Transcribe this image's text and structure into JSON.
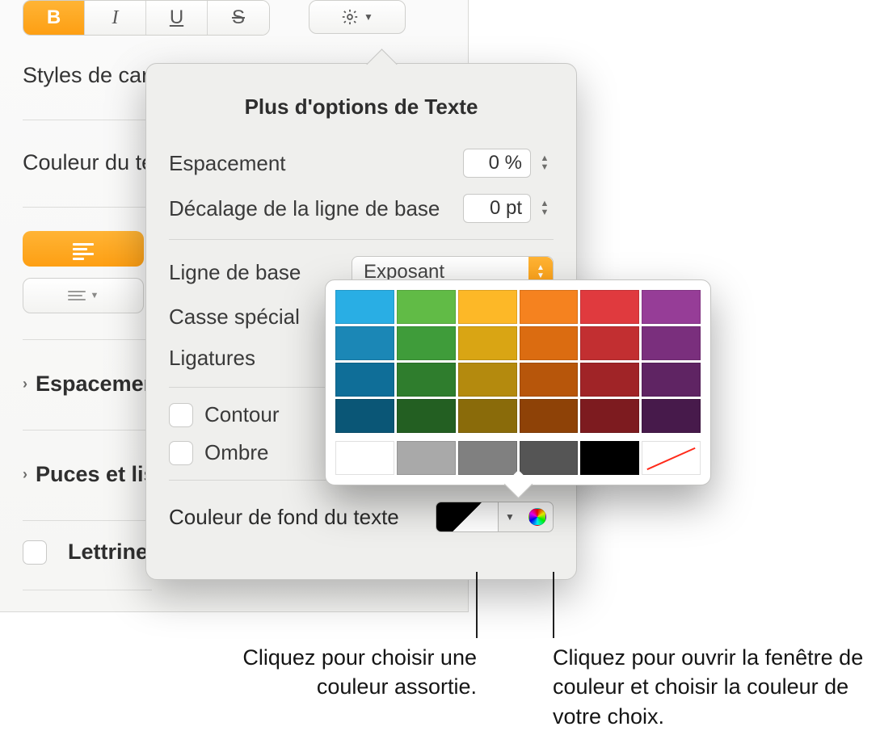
{
  "sidebar": {
    "styles_label": "Styles de cara",
    "color_label": "Couleur du tex",
    "spacing_label": "Espacemen",
    "bullets_label": "Puces et lis",
    "dropcap_label": "Lettrine"
  },
  "format_buttons": {
    "bold": "B",
    "italic": "I",
    "underline": "U",
    "strike": "S"
  },
  "popover": {
    "title": "Plus d'options de Texte",
    "spacing_label": "Espacement",
    "spacing_value": "0 %",
    "baseline_shift_label": "Décalage de la ligne de base",
    "baseline_shift_value": "0 pt",
    "baseline_label": "Ligne de base",
    "baseline_choice": "Exposant",
    "caps_label": "Casse spécial",
    "ligatures_label": "Ligatures",
    "outline_label": "Contour",
    "shadow_label": "Ombre",
    "bgcolor_label": "Couleur de fond du texte"
  },
  "palette": {
    "rows": [
      [
        "#29aee4",
        "#61bb46",
        "#fdb827",
        "#f5821f",
        "#e03a3e",
        "#963d97"
      ],
      [
        "#1b87b6",
        "#3f9c3a",
        "#d9a514",
        "#db6c11",
        "#c22f31",
        "#7a2f7d"
      ],
      [
        "#0f6e98",
        "#2f7d2d",
        "#b48a0e",
        "#b7560b",
        "#a02427",
        "#5f2463"
      ],
      [
        "#0a5676",
        "#235f22",
        "#8a6b0a",
        "#8e4207",
        "#7d1b1f",
        "#471a4b"
      ]
    ],
    "neutrals": [
      "#ffffff",
      "#a9a9a9",
      "#808080",
      "#555555",
      "#000000",
      "none"
    ]
  },
  "callouts": {
    "left": "Cliquez pour choisir une couleur assortie.",
    "right": "Cliquez pour ouvrir la fenêtre de couleur et choisir la couleur de votre choix."
  },
  "colors": {
    "accent": "#fe9f13"
  }
}
